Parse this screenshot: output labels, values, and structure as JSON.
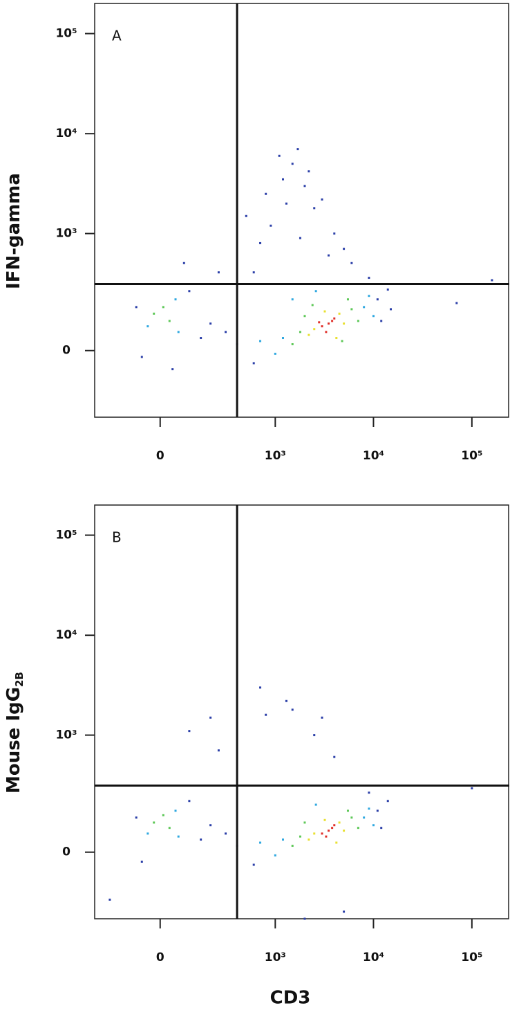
{
  "chart_data": [
    {
      "type": "scatter",
      "panel_label": "A",
      "y_label": "IFN-gamma",
      "xlim": [
        -300,
        240000
      ],
      "ylim": [
        -300,
        200000
      ],
      "xticks": [
        0,
        {
          "value": 1000,
          "label": "10³"
        },
        {
          "value": 10000,
          "label": "10⁴"
        },
        {
          "value": 100000,
          "label": "10⁵"
        }
      ],
      "yticks": [
        0,
        {
          "value": 1000,
          "label": "10³"
        },
        {
          "value": 10000,
          "label": "10⁴"
        },
        {
          "value": 100000,
          "label": "10⁵"
        }
      ],
      "quadrant": {
        "x": 400,
        "y": 300
      },
      "series": [
        {
          "color": "#2b3fa8",
          "x": [
            11000,
            14000,
            15000,
            600,
            400,
            300,
            200,
            150,
            -80,
            100,
            -60,
            500,
            800,
            1200,
            1500,
            2000,
            2500,
            3000,
            900,
            700,
            1800,
            4000,
            5000,
            1100,
            250,
            -50,
            80,
            6000,
            9000,
            160000,
            70000,
            1300,
            1700,
            2200,
            600,
            3500,
            12000,
            40
          ],
          "y": [
            200,
            260,
            150,
            -40,
            20,
            60,
            90,
            40,
            160,
            250,
            -20,
            1500,
            2500,
            3500,
            5000,
            3000,
            1800,
            2200,
            1200,
            800,
            900,
            1000,
            700,
            6000,
            400,
            300,
            500,
            500,
            350,
            330,
            180,
            2000,
            7000,
            4200,
            400,
            600,
            100,
            -60
          ]
        },
        {
          "color": "#2fa8e0",
          "x": [
            1200,
            8000,
            9000,
            1000,
            50,
            -40,
            60,
            2600,
            700,
            10000,
            1500
          ],
          "y": [
            40,
            160,
            220,
            -10,
            200,
            80,
            60,
            250,
            30,
            120,
            200
          ]
        },
        {
          "color": "#5ec858",
          "x": [
            1800,
            6000,
            7000,
            2000,
            1500,
            5500,
            -20,
            30,
            10,
            2400,
            4800
          ],
          "y": [
            60,
            150,
            100,
            120,
            20,
            200,
            130,
            100,
            160,
            170,
            30
          ]
        },
        {
          "color": "#e8e030",
          "x": [
            2500,
            4500,
            5000,
            3200,
            2200,
            4200
          ],
          "y": [
            70,
            130,
            90,
            140,
            50,
            40
          ]
        },
        {
          "color": "#e0302a",
          "x": [
            3500,
            3000,
            4000,
            3300,
            3800,
            2800
          ],
          "y": [
            90,
            80,
            110,
            60,
            100,
            95
          ]
        }
      ]
    },
    {
      "type": "scatter",
      "panel_label": "B",
      "y_label": "Mouse IgG",
      "y_label_subscript": "2B",
      "x_label": "CD3",
      "xlim": [
        -300,
        240000
      ],
      "ylim": [
        -300,
        200000
      ],
      "xticks": [
        0,
        {
          "value": 1000,
          "label": "10³"
        },
        {
          "value": 10000,
          "label": "10⁴"
        },
        {
          "value": 100000,
          "label": "10⁵"
        }
      ],
      "yticks": [
        0,
        {
          "value": 1000,
          "label": "10³"
        },
        {
          "value": 10000,
          "label": "10⁴"
        },
        {
          "value": 100000,
          "label": "10⁵"
        }
      ],
      "quadrant": {
        "x": 400,
        "y": 300
      },
      "series": [
        {
          "color": "#2b3fa8",
          "x": [
            11000,
            14000,
            600,
            400,
            300,
            200,
            150,
            -80,
            100,
            -60,
            800,
            1500,
            2500,
            3000,
            100,
            200,
            4000,
            250,
            9000,
            100000,
            5000,
            1300,
            -200,
            2000,
            700,
            12000
          ],
          "y": [
            150,
            200,
            -40,
            20,
            60,
            90,
            40,
            120,
            200,
            -30,
            1600,
            1800,
            1000,
            1500,
            1100,
            1500,
            600,
            700,
            250,
            280,
            -250,
            2200,
            -180,
            -300,
            3000,
            80
          ]
        },
        {
          "color": "#2fa8e0",
          "x": [
            1200,
            8000,
            9000,
            1000,
            50,
            -40,
            60,
            2600,
            700,
            10000
          ],
          "y": [
            40,
            120,
            160,
            -10,
            150,
            60,
            50,
            180,
            30,
            90
          ]
        },
        {
          "color": "#5ec858",
          "x": [
            1800,
            6000,
            7000,
            2000,
            1500,
            5500,
            -20,
            30,
            10
          ],
          "y": [
            50,
            120,
            80,
            100,
            20,
            150,
            100,
            80,
            130
          ]
        },
        {
          "color": "#e8e030",
          "x": [
            2500,
            4500,
            5000,
            3200,
            2200,
            4200
          ],
          "y": [
            60,
            100,
            70,
            110,
            40,
            30
          ]
        },
        {
          "color": "#e0302a",
          "x": [
            3500,
            3000,
            4000,
            3300,
            3800
          ],
          "y": [
            70,
            60,
            90,
            50,
            80
          ]
        }
      ]
    }
  ]
}
